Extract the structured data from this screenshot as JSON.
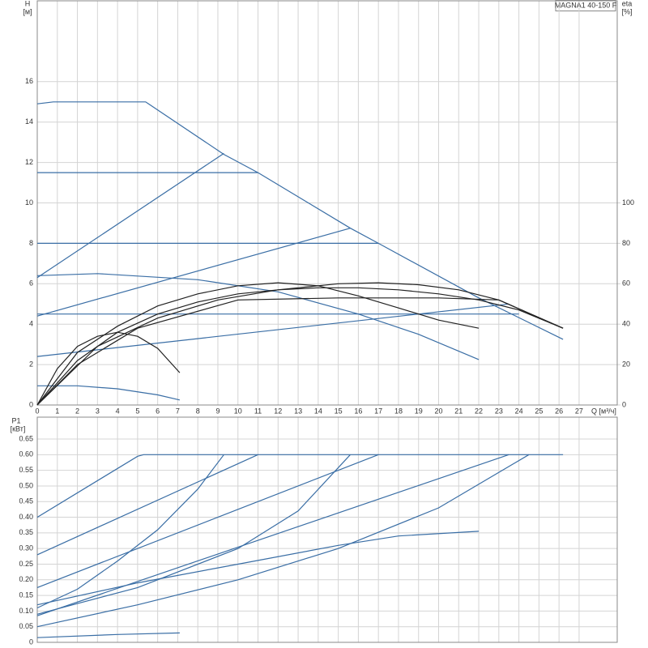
{
  "chart_data": [
    {
      "type": "line",
      "title": "MAGNA1 40-150 F",
      "ylabel": "H",
      "yunit": "[м]",
      "y2label": "eta",
      "y2unit": "[%]",
      "xlabel": "Q [м³/ч]",
      "xlim": [
        0,
        28.9
      ],
      "xticks": [
        0,
        1,
        2,
        3,
        4,
        5,
        6,
        7,
        8,
        9,
        10,
        11,
        12,
        13,
        14,
        15,
        16,
        17,
        18,
        19,
        20,
        21,
        22,
        23,
        24,
        25,
        26,
        27
      ],
      "ylim": [
        0,
        20
      ],
      "yticks": [
        0,
        2,
        4,
        6,
        8,
        10,
        12,
        14,
        16
      ],
      "y2lim": [
        0,
        200
      ],
      "y2ticks": [
        0,
        20,
        40,
        60,
        80,
        100
      ],
      "grid": true,
      "show_xtick_labels": true,
      "series": [
        {
          "color": "#3a6ea5",
          "x": [
            0,
            0.8,
            5.4,
            9.3,
            11,
            15.6,
            17,
            22,
            26.2
          ],
          "values": [
            14.9,
            15,
            15,
            12.4,
            11.5,
            8.75,
            8,
            5.3,
            3.25
          ]
        },
        {
          "color": "#3a6ea5",
          "x": [
            0,
            9.3
          ],
          "values": [
            6.3,
            12.45
          ]
        },
        {
          "color": "#3a6ea5",
          "x": [
            0,
            15.6
          ],
          "values": [
            4.4,
            8.75
          ]
        },
        {
          "color": "#3a6ea5",
          "x": [
            0,
            23.5
          ],
          "values": [
            2.4,
            5
          ]
        },
        {
          "color": "#3a6ea5",
          "x": [
            0,
            11
          ],
          "values": [
            11.5,
            11.5
          ]
        },
        {
          "color": "#3a6ea5",
          "x": [
            0,
            17
          ],
          "values": [
            8,
            8
          ]
        },
        {
          "color": "#3a6ea5",
          "x": [
            0,
            24
          ],
          "values": [
            4.5,
            4.5
          ]
        },
        {
          "color": "#3a6ea5",
          "x": [
            0,
            3,
            8,
            12,
            16,
            19,
            22
          ],
          "values": [
            6.4,
            6.5,
            6.2,
            5.6,
            4.5,
            3.5,
            2.25
          ]
        },
        {
          "color": "#3a6ea5",
          "x": [
            0,
            2,
            4,
            6,
            7.1
          ],
          "values": [
            0.95,
            0.95,
            0.8,
            0.5,
            0.25
          ]
        },
        {
          "color": "#222222",
          "x": [
            0,
            1,
            2,
            3,
            4,
            5,
            6,
            7.1
          ],
          "values": [
            0,
            1.8,
            2.9,
            3.4,
            3.6,
            3.4,
            2.8,
            1.6
          ]
        },
        {
          "color": "#222222",
          "x": [
            0,
            2,
            4,
            6,
            8,
            10,
            12,
            14,
            16,
            18,
            20,
            22
          ],
          "values": [
            0,
            2.6,
            3.9,
            4.9,
            5.5,
            5.9,
            6.05,
            5.9,
            5.4,
            4.8,
            4.2,
            3.8
          ]
        },
        {
          "color": "#222222",
          "x": [
            0,
            2,
            4,
            6,
            8,
            10,
            12,
            14,
            16,
            18,
            20,
            22,
            24,
            26.2
          ],
          "values": [
            0,
            2.2,
            3.6,
            4.5,
            5.1,
            5.5,
            5.7,
            5.8,
            5.8,
            5.7,
            5.5,
            5.2,
            4.7,
            3.8
          ]
        },
        {
          "color": "#222222",
          "x": [
            0,
            3,
            6,
            9,
            12,
            15,
            17,
            19,
            21,
            23,
            26.2
          ],
          "values": [
            0,
            2.9,
            4.3,
            5.2,
            5.7,
            6,
            6.05,
            5.95,
            5.7,
            5.2,
            3.8
          ]
        },
        {
          "color": "#222222",
          "x": [
            0,
            2,
            5,
            10,
            15,
            20,
            23,
            26.2
          ],
          "values": [
            0,
            2,
            3.8,
            5.2,
            5.3,
            5.3,
            5.2,
            3.8
          ]
        }
      ]
    },
    {
      "type": "line",
      "ylabel": "P1",
      "yunit": "[кВт]",
      "xlim": [
        0,
        28.9
      ],
      "xticks": [
        0,
        1,
        2,
        3,
        4,
        5,
        6,
        7,
        8,
        9,
        10,
        11,
        12,
        13,
        14,
        15,
        16,
        17,
        18,
        19,
        20,
        21,
        22,
        23,
        24,
        25,
        26,
        27
      ],
      "ylim": [
        0,
        0.72
      ],
      "yticks": [
        0,
        0.05,
        {
          "value": 0.1,
          "label": "0.10"
        },
        0.15,
        {
          "value": 0.2,
          "label": "0.20"
        },
        0.25,
        {
          "value": 0.3,
          "label": "0.30"
        },
        0.35,
        {
          "value": 0.4,
          "label": "0.40"
        },
        0.45,
        {
          "value": 0.5,
          "label": "0.50"
        },
        0.55,
        {
          "value": 0.6,
          "label": "0.60"
        },
        0.65
      ],
      "grid": true,
      "show_xtick_labels": false,
      "series": [
        {
          "color": "#3a6ea5",
          "x": [
            0,
            5,
            5.3,
            26.2
          ],
          "values": [
            0.4,
            0.595,
            0.6,
            0.6
          ]
        },
        {
          "color": "#3a6ea5",
          "x": [
            0,
            11
          ],
          "values": [
            0.28,
            0.6
          ]
        },
        {
          "color": "#3a6ea5",
          "x": [
            0,
            17
          ],
          "values": [
            0.175,
            0.6
          ]
        },
        {
          "color": "#3a6ea5",
          "x": [
            0,
            23.5
          ],
          "values": [
            0.085,
            0.6
          ]
        },
        {
          "color": "#3a6ea5",
          "x": [
            0,
            2,
            4,
            6,
            8,
            9.3
          ],
          "values": [
            0.11,
            0.17,
            0.26,
            0.36,
            0.49,
            0.6
          ]
        },
        {
          "color": "#3a6ea5",
          "x": [
            0,
            5,
            10,
            13,
            15.6
          ],
          "values": [
            0.09,
            0.175,
            0.3,
            0.42,
            0.6
          ]
        },
        {
          "color": "#3a6ea5",
          "x": [
            0,
            5,
            10,
            15,
            20,
            24.5
          ],
          "values": [
            0.05,
            0.12,
            0.2,
            0.3,
            0.43,
            0.6
          ]
        },
        {
          "color": "#3a6ea5",
          "x": [
            0,
            5,
            10,
            15,
            18,
            22
          ],
          "values": [
            0.12,
            0.19,
            0.25,
            0.31,
            0.34,
            0.355
          ]
        },
        {
          "color": "#3a6ea5",
          "x": [
            0,
            4,
            7.1
          ],
          "values": [
            0.015,
            0.025,
            0.03
          ]
        }
      ]
    }
  ]
}
